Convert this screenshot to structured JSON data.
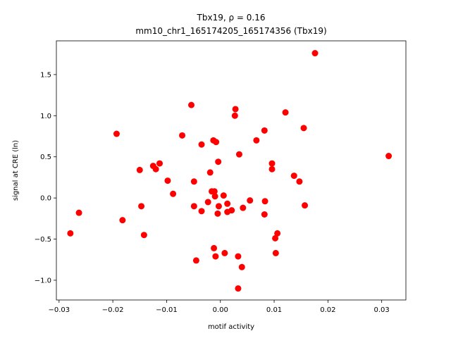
{
  "chart_data": {
    "type": "scatter",
    "title_line1": "Tbx19, ρ = 0.16",
    "title_line2": "mm10_chr1_165174205_165174356 (Tbx19)",
    "xlabel": "motif activity",
    "ylabel": "signal at CRE (ln)",
    "xlim": [
      -0.0305,
      0.0345
    ],
    "ylim": [
      -1.24,
      1.91
    ],
    "xticks": [
      -0.03,
      -0.02,
      -0.01,
      0.0,
      0.01,
      0.02,
      0.03
    ],
    "xtick_labels": [
      "−0.03",
      "−0.02",
      "−0.01",
      "0.00",
      "0.01",
      "0.02",
      "0.03"
    ],
    "yticks": [
      -1.0,
      -0.5,
      0.0,
      0.5,
      1.0,
      1.5
    ],
    "ytick_labels": [
      "−1.0",
      "−0.5",
      "0.0",
      "0.5",
      "1.0",
      "1.5"
    ],
    "grid": false,
    "marker_color": "#ff0000",
    "points": [
      {
        "x": -0.0279,
        "y": -0.43
      },
      {
        "x": -0.0263,
        "y": -0.18
      },
      {
        "x": -0.0193,
        "y": 0.78
      },
      {
        "x": -0.0182,
        "y": -0.27
      },
      {
        "x": -0.015,
        "y": 0.34
      },
      {
        "x": -0.0147,
        "y": -0.1
      },
      {
        "x": -0.0142,
        "y": -0.45
      },
      {
        "x": -0.0125,
        "y": 0.39
      },
      {
        "x": -0.012,
        "y": 0.35
      },
      {
        "x": -0.0113,
        "y": 0.42
      },
      {
        "x": -0.0098,
        "y": 0.21
      },
      {
        "x": -0.0088,
        "y": 0.05
      },
      {
        "x": -0.0071,
        "y": 0.76
      },
      {
        "x": -0.0054,
        "y": 1.13
      },
      {
        "x": -0.0049,
        "y": 0.2
      },
      {
        "x": -0.0049,
        "y": -0.1
      },
      {
        "x": -0.0045,
        "y": -0.76
      },
      {
        "x": -0.0035,
        "y": 0.65
      },
      {
        "x": -0.0035,
        "y": -0.16
      },
      {
        "x": -0.0023,
        "y": -0.05
      },
      {
        "x": -0.0019,
        "y": 0.31
      },
      {
        "x": -0.0016,
        "y": 0.08
      },
      {
        "x": -0.0013,
        "y": 0.7
      },
      {
        "x": -0.0012,
        "y": -0.61
      },
      {
        "x": -0.0011,
        "y": 0.08
      },
      {
        "x": -0.001,
        "y": 0.02
      },
      {
        "x": -0.0009,
        "y": -0.71
      },
      {
        "x": -0.0008,
        "y": 0.68
      },
      {
        "x": -0.0005,
        "y": -0.19
      },
      {
        "x": -0.0004,
        "y": 0.44
      },
      {
        "x": -0.0003,
        "y": -0.1
      },
      {
        "x": 0.0006,
        "y": 0.03
      },
      {
        "x": 0.0008,
        "y": -0.67
      },
      {
        "x": 0.0013,
        "y": -0.07
      },
      {
        "x": 0.0013,
        "y": -0.17
      },
      {
        "x": 0.0021,
        "y": -0.15
      },
      {
        "x": 0.0027,
        "y": 1.0
      },
      {
        "x": 0.0028,
        "y": 1.08
      },
      {
        "x": 0.0033,
        "y": -0.71
      },
      {
        "x": 0.0033,
        "y": -1.1
      },
      {
        "x": 0.0035,
        "y": 0.53
      },
      {
        "x": 0.004,
        "y": -0.84
      },
      {
        "x": 0.0042,
        "y": -0.12
      },
      {
        "x": 0.0055,
        "y": -0.03
      },
      {
        "x": 0.0067,
        "y": 0.7
      },
      {
        "x": 0.0082,
        "y": 0.82
      },
      {
        "x": 0.0082,
        "y": -0.2
      },
      {
        "x": 0.0083,
        "y": -0.04
      },
      {
        "x": 0.0096,
        "y": 0.42
      },
      {
        "x": 0.0096,
        "y": 0.35
      },
      {
        "x": 0.0102,
        "y": -0.49
      },
      {
        "x": 0.0103,
        "y": -0.67
      },
      {
        "x": 0.0106,
        "y": -0.43
      },
      {
        "x": 0.0121,
        "y": 1.04
      },
      {
        "x": 0.0137,
        "y": 0.27
      },
      {
        "x": 0.0147,
        "y": 0.2
      },
      {
        "x": 0.0155,
        "y": 0.85
      },
      {
        "x": 0.0157,
        "y": -0.09
      },
      {
        "x": 0.0176,
        "y": 1.76
      },
      {
        "x": 0.0313,
        "y": 0.51
      }
    ]
  }
}
